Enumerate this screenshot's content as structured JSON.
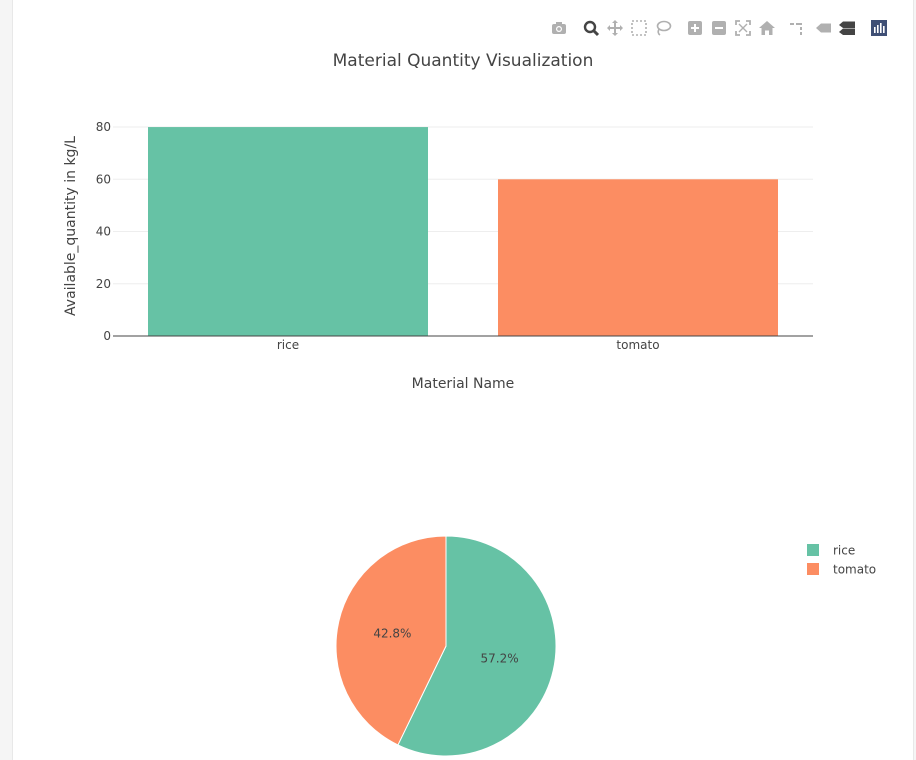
{
  "modebar": {
    "icons": [
      {
        "name": "camera-icon",
        "glyph": "camera"
      },
      {
        "name": "zoom-icon",
        "glyph": "zoom"
      },
      {
        "name": "pan-icon",
        "glyph": "pan"
      },
      {
        "name": "box-select-icon",
        "glyph": "box"
      },
      {
        "name": "lasso-select-icon",
        "glyph": "lasso"
      },
      {
        "name": "zoom-in-icon",
        "glyph": "plus"
      },
      {
        "name": "zoom-out-icon",
        "glyph": "minus"
      },
      {
        "name": "autoscale-icon",
        "glyph": "autoscale"
      },
      {
        "name": "reset-axes-icon",
        "glyph": "home"
      },
      {
        "name": "spike-lines-icon",
        "glyph": "spike"
      },
      {
        "name": "hover-closest-icon",
        "glyph": "tag1"
      },
      {
        "name": "hover-compare-icon",
        "glyph": "tag2"
      },
      {
        "name": "plotly-logo-icon",
        "glyph": "logo"
      }
    ],
    "color": "#b0b0b0",
    "active_color": "#444444",
    "logo_color": "#3f4f75"
  },
  "chart_data": [
    {
      "type": "bar",
      "title": "Material Quantity Visualization",
      "xlabel": "Material Name",
      "ylabel": "Available_quantity in kg/L",
      "categories": [
        "rice",
        "tomato"
      ],
      "values": [
        80,
        60
      ],
      "colors": [
        "#66c2a5",
        "#fc8d62"
      ],
      "ylim": [
        0,
        85
      ],
      "yticks": [
        0,
        20,
        40,
        60,
        80
      ],
      "grid": true
    },
    {
      "type": "pie",
      "labels": [
        "rice",
        "tomato"
      ],
      "values": [
        57.2,
        42.8
      ],
      "slice_labels": [
        "57.2%",
        "42.8%"
      ],
      "colors": [
        "#66c2a5",
        "#fc8d62"
      ],
      "legend": {
        "placement": "right",
        "entries": [
          "rice",
          "tomato"
        ]
      }
    }
  ]
}
